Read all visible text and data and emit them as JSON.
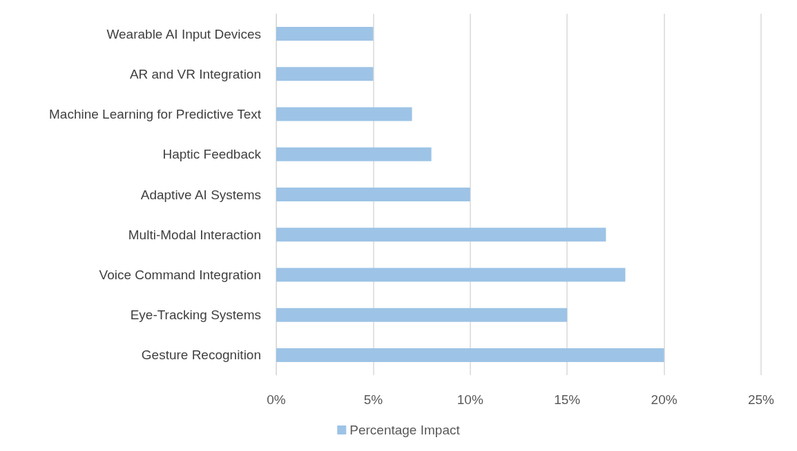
{
  "chart_data": {
    "type": "bar",
    "orientation": "horizontal",
    "categories": [
      "Wearable AI Input Devices",
      "AR and VR Integration",
      "Machine Learning for Predictive Text",
      "Haptic Feedback",
      "Adaptive AI Systems",
      "Multi-Modal Interaction",
      "Voice Command Integration",
      "Eye-Tracking Systems",
      "Gesture Recognition"
    ],
    "series": [
      {
        "name": "Percentage Impact",
        "color": "#9dc3e6",
        "values": [
          5,
          5,
          7,
          8,
          10,
          17,
          18,
          15,
          20
        ]
      }
    ],
    "xlim": [
      0,
      25
    ],
    "xticks": [
      {
        "value": 0,
        "label": "0%"
      },
      {
        "value": 5,
        "label": "5%"
      },
      {
        "value": 10,
        "label": "10%"
      },
      {
        "value": 15,
        "label": "15%"
      },
      {
        "value": 20,
        "label": "20%"
      },
      {
        "value": 25,
        "label": "25%"
      }
    ],
    "grid": "x",
    "legend": "bottom"
  }
}
